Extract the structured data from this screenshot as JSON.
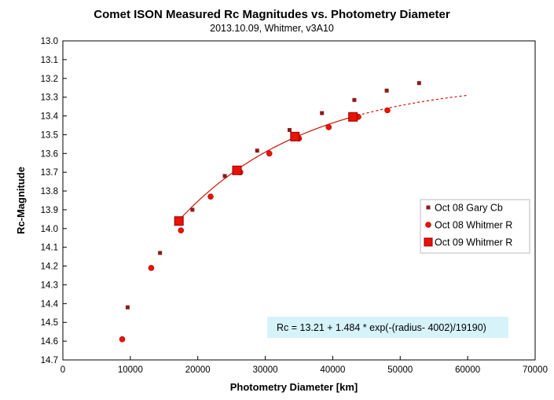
{
  "chart_data": {
    "type": "scatter",
    "title": "Comet ISON Measured Rc Magnitudes vs. Photometry Diameter",
    "subtitle": "2013.10.09,  Whitmer, v3A10",
    "xlabel": "Photometry Diameter  [km]",
    "ylabel": "Rc-Magnitude",
    "xlim": [
      0,
      70000
    ],
    "ylim": [
      13.0,
      14.7
    ],
    "y_inverted": true,
    "x_ticks": [
      "0",
      "10000",
      "20000",
      "30000",
      "40000",
      "50000",
      "60000",
      "70000"
    ],
    "y_ticks": [
      "13.0",
      "13.1",
      "13.2",
      "13.3",
      "13.4",
      "13.5",
      "13.6",
      "13.7",
      "13.8",
      "13.9",
      "14.0",
      "14.1",
      "14.2",
      "14.3",
      "14.4",
      "14.5",
      "14.6",
      "14.7"
    ],
    "grid": false,
    "legend_position": "right",
    "series": [
      {
        "name": "Oct 08 Gary Cb",
        "marker": "small-square",
        "color": "#8b1a1a",
        "x": [
          9600,
          14400,
          19200,
          24000,
          28800,
          33600,
          38400,
          43200,
          48000,
          52800
        ],
        "y": [
          14.42,
          14.13,
          13.9,
          13.72,
          13.585,
          13.475,
          13.385,
          13.315,
          13.265,
          13.225
        ]
      },
      {
        "name": "Oct 08 Whitmer R",
        "marker": "circle",
        "color": "#ee1100",
        "x": [
          8800,
          13100,
          17500,
          21900,
          26300,
          30600,
          35000,
          39400,
          43800,
          48100
        ],
        "y": [
          14.59,
          14.21,
          14.01,
          13.83,
          13.7,
          13.6,
          13.52,
          13.46,
          13.405,
          13.37
        ]
      },
      {
        "name": "Oct 09 Whitmer R",
        "marker": "large-square",
        "color": "#ee1100",
        "x": [
          17200,
          25800,
          34400,
          43000
        ],
        "y": [
          13.96,
          13.69,
          13.51,
          13.405
        ]
      }
    ],
    "fit": {
      "a": 13.21,
      "b": 1.484,
      "x0": 4002,
      "tau": 19190,
      "solid_range": [
        17200,
        43000
      ],
      "dashed_range": [
        43000,
        60000
      ],
      "color": "#cc1100"
    },
    "annotation": "Rc = 13.21 + 1.484 * exp(-(radius- 4002)/19190)",
    "annotation_bg": "#d6f3fa"
  }
}
